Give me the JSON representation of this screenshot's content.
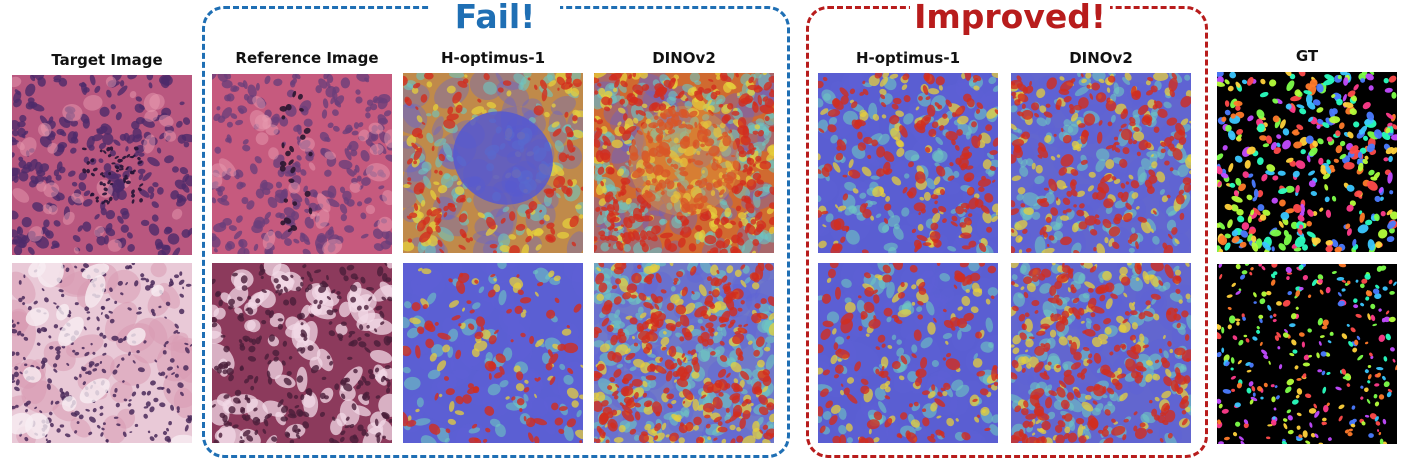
{
  "groups": {
    "fail": {
      "title": "Fail!",
      "color": "#1f6fb4"
    },
    "improved": {
      "title": "Improved!",
      "color": "#b81c1c"
    }
  },
  "columns": {
    "target": "Target Image",
    "reference": "Reference Image",
    "fail_hoptimus": "H-optimus-1",
    "fail_dinov2": "DINOv2",
    "imp_hoptimus": "H-optimus-1",
    "imp_dinov2": "DINOv2",
    "gt": "GT"
  },
  "rows": 2,
  "tile_kinds": [
    "he-dense",
    "he-ref",
    "heat-cold-center",
    "heat-hot",
    "heat-mixed",
    "heat-mixed-warm",
    "gt-mask"
  ]
}
